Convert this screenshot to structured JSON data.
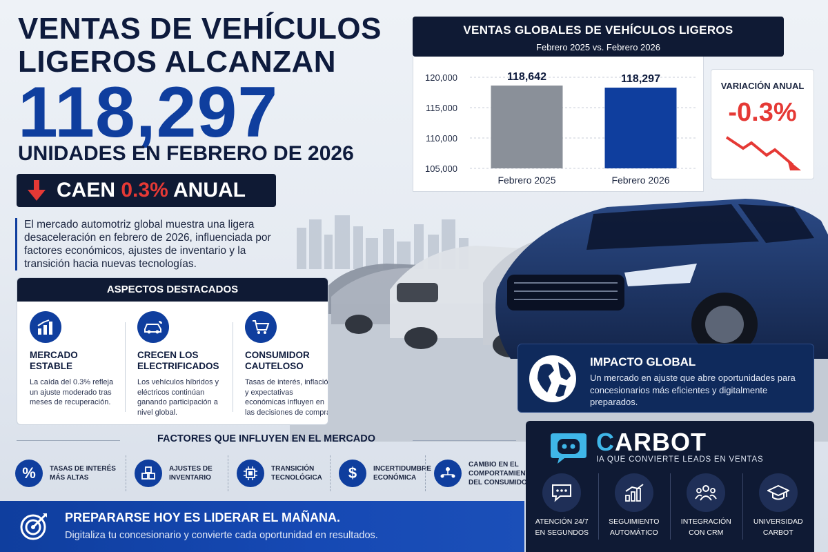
{
  "headline": {
    "line1": "VENTAS DE VEHÍCULOS",
    "line2": "LIGEROS ALCANZAN",
    "number": "118,297",
    "subline": "UNIDADES EN FEBRERO DE 2026",
    "decline_prefix": "CAEN",
    "decline_pct": "0.3%",
    "decline_suffix": "ANUAL"
  },
  "intro": "El mercado automotriz global muestra una ligera desaceleración en febrero de 2026, influenciada por factores económicos, ajustes de inventario y la transición hacia nuevas tecnologías.",
  "chart_header": {
    "title": "VENTAS GLOBALES DE VEHÍCULOS LIGEROS",
    "subtitle": "Febrero 2025 vs. Febrero 2026"
  },
  "chart_data": {
    "type": "bar",
    "categories": [
      "Febrero 2025",
      "Febrero 2026"
    ],
    "values": [
      118642,
      118297
    ],
    "data_labels": [
      "118,642",
      "118,297"
    ],
    "colors": [
      "#8a9099",
      "#0f3e9e"
    ],
    "yticks": [
      "120,000",
      "115,000",
      "110,000",
      "105,000"
    ],
    "ytick_values": [
      120000,
      115000,
      110000,
      105000
    ],
    "ylim": [
      105000,
      120000
    ],
    "grid": true
  },
  "variation": {
    "label": "VARIACIÓN ANUAL",
    "value": "-0.3%"
  },
  "highlights": {
    "title": "ASPECTOS DESTACADOS",
    "items": [
      {
        "title": "MERCADO ESTABLE",
        "text": "La caída del 0.3% refleja un ajuste moderado tras meses de recuperación.",
        "icon": "bar-chart-icon"
      },
      {
        "title": "CRECEN LOS ELECTRIFICADOS",
        "text": "Los vehículos híbridos y eléctricos continúan ganando participación a nivel global.",
        "icon": "electric-car-icon"
      },
      {
        "title": "CONSUMIDOR CAUTELOSO",
        "text": "Tasas de interés, inflación y expectativas económicas influyen en las decisiones de compra!",
        "icon": "shopping-cart-icon"
      }
    ]
  },
  "factors": {
    "title": "FACTORES QUE INFLUYEN EN EL MERCADO",
    "items": [
      {
        "label": "TASAS DE INTERÉS MÁS ALTAS",
        "icon": "percent-icon"
      },
      {
        "label": "AJUSTES DE INVENTARIO",
        "icon": "boxes-icon"
      },
      {
        "label": "TRANSICIÓN TECNOLÓGICA",
        "icon": "chip-icon"
      },
      {
        "label": "INCERTIDUMBRE ECONÓMICA",
        "icon": "dollar-icon"
      },
      {
        "label": "CAMBIO EN EL COMPORTAMIENTO DEL CONSUMIDOR",
        "icon": "people-network-icon"
      }
    ]
  },
  "banner": {
    "title": "PREPARARSE HOY ES LIDERAR EL MAÑANA.",
    "subtitle": "Digitaliza tu concesionario y convierte cada oportunidad en resultados."
  },
  "impact": {
    "title": "IMPACTO GLOBAL",
    "text": "Un mercado en ajuste que abre oportunidades para concesionarios más eficientes y digitalmente preparados."
  },
  "carbot": {
    "name_c": "C",
    "name_rest": "ARBOT",
    "tagline": "IA QUE CONVIERTE LEADS EN VENTAS",
    "features": [
      {
        "line1": "ATENCIÓN 24/7",
        "line2": "EN SEGUNDOS",
        "icon": "chat-icon"
      },
      {
        "line1": "SEGUIMIENTO",
        "line2": "AUTOMÁTICO",
        "icon": "growth-chart-icon"
      },
      {
        "line1": "INTEGRACIÓN",
        "line2": "CON CRM",
        "icon": "team-icon"
      },
      {
        "line1": "UNIVERSIDAD",
        "line2": "CARBOT",
        "icon": "graduation-cap-icon"
      }
    ]
  }
}
